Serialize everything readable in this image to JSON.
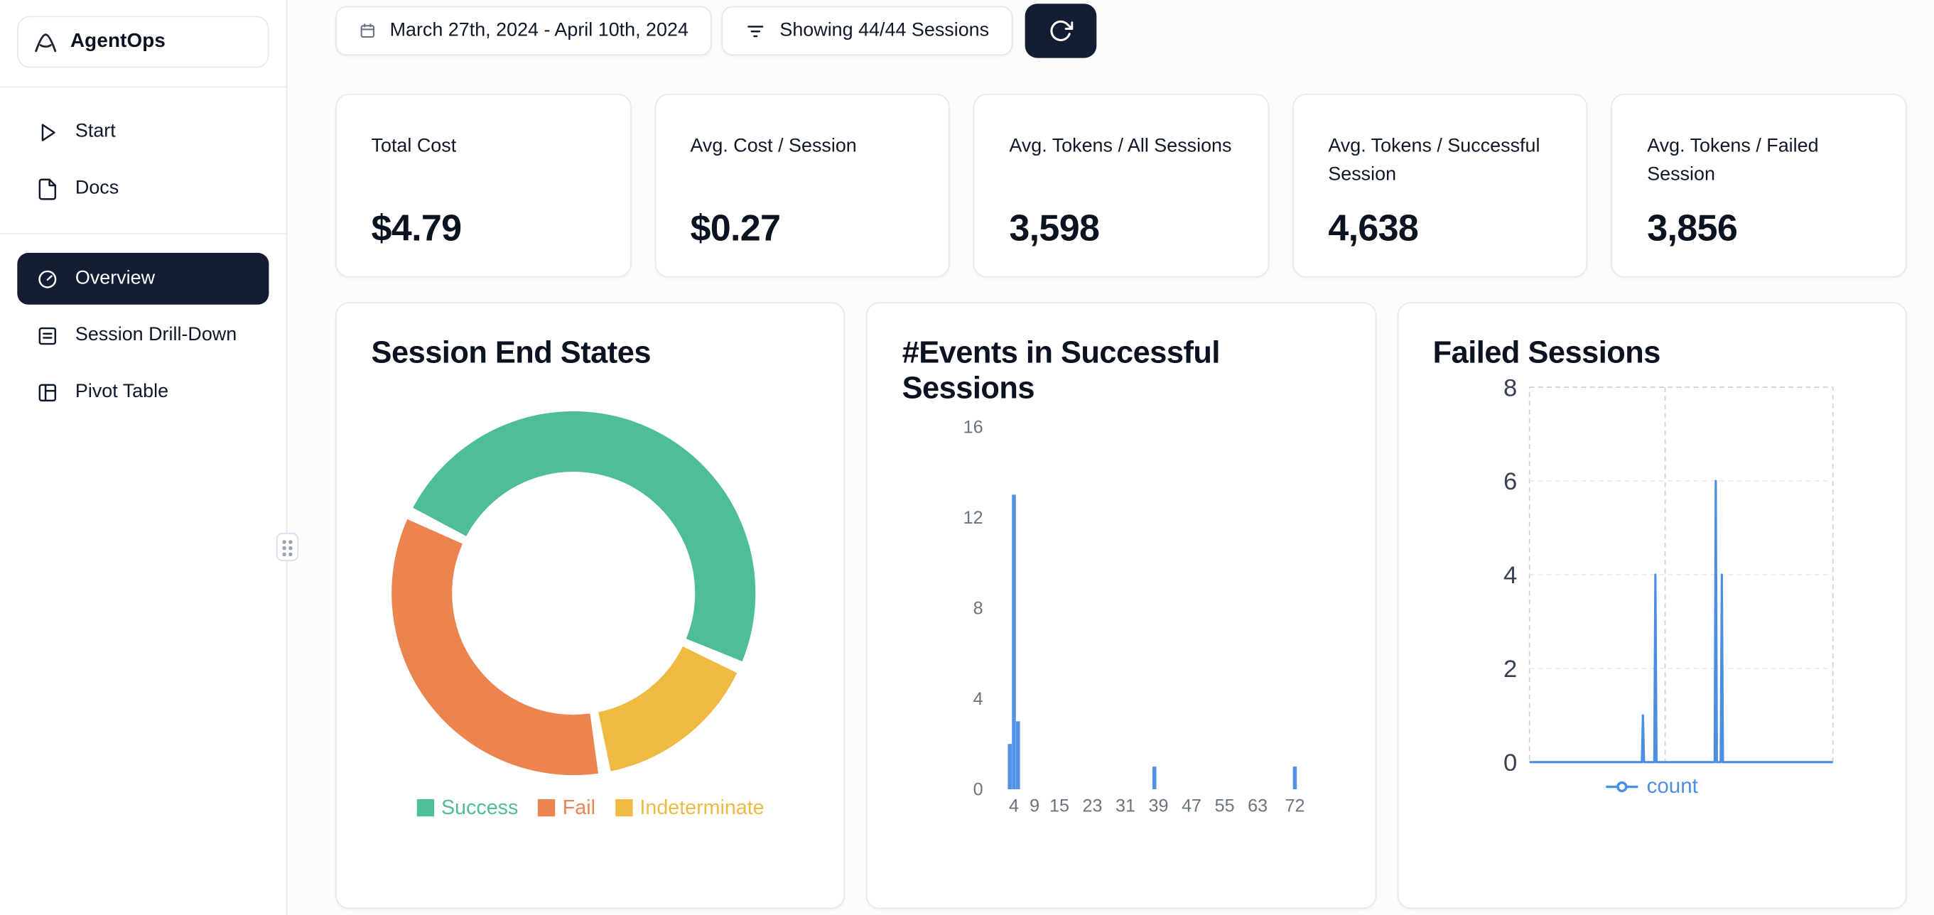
{
  "app": {
    "name": "AgentOps"
  },
  "sidebar": {
    "nav_top": [
      {
        "label": "Start"
      },
      {
        "label": "Docs"
      }
    ],
    "nav_main": [
      {
        "label": "Overview",
        "active": true
      },
      {
        "label": "Session Drill-Down",
        "active": false
      },
      {
        "label": "Pivot Table",
        "active": false
      }
    ]
  },
  "toolbar": {
    "date_range": "March 27th, 2024 - April 10th, 2024",
    "filter_label": "Showing 44/44 Sessions"
  },
  "stats": [
    {
      "label": "Total Cost",
      "value": "$4.79"
    },
    {
      "label": "Avg. Cost / Session",
      "value": "$0.27"
    },
    {
      "label": "Avg. Tokens / All Sessions",
      "value": "3,598"
    },
    {
      "label": "Avg. Tokens / Successful Session",
      "value": "4,638"
    },
    {
      "label": "Avg. Tokens / Failed Session",
      "value": "3,856"
    }
  ],
  "charts": {
    "session_end_states": {
      "title": "Session End States",
      "chart_data": {
        "type": "pie",
        "donut": true,
        "labels": [
          "Success",
          "Fail",
          "Indeterminate"
        ],
        "values": [
          50,
          35,
          15
        ],
        "colors": [
          "#4dbe95",
          "#ec8450",
          "#efba42"
        ],
        "start_angle": -62,
        "gap_deg": 4,
        "draw_order_idx": [
          0,
          2,
          1
        ],
        "legend_position": "bottom"
      }
    },
    "events_successful": {
      "title": "#Events in Successful Sessions",
      "chart_data": {
        "type": "bar",
        "bars": [
          {
            "x": 3,
            "y": 2
          },
          {
            "x": 4,
            "y": 13
          },
          {
            "x": 5,
            "y": 3
          },
          {
            "x": 38,
            "y": 1
          },
          {
            "x": 72,
            "y": 1
          }
        ],
        "xticks": [
          4,
          9,
          15,
          23,
          31,
          39,
          47,
          55,
          63,
          72
        ],
        "yticks": [
          16,
          12,
          8,
          4,
          0
        ],
        "xlim": [
          0,
          76
        ],
        "ylim": [
          0,
          16
        ],
        "bar_color": "#5291e4",
        "grid": false
      }
    },
    "failed_sessions": {
      "title": "Failed Sessions",
      "chart_data": {
        "type": "line",
        "series": [
          {
            "name": "count",
            "spikes": [
              {
                "x_frac": 0.374,
                "y": 1
              },
              {
                "x_frac": 0.415,
                "y": 4
              },
              {
                "x_frac": 0.614,
                "y": 6
              },
              {
                "x_frac": 0.634,
                "y": 4
              }
            ],
            "baseline": 0
          }
        ],
        "yticks": [
          8,
          6,
          4,
          2,
          0
        ],
        "ylim": [
          0,
          8
        ],
        "line_color": "#4c8fe2",
        "legend": "count",
        "grid": "dashed",
        "legend_position": "bottom"
      }
    }
  }
}
